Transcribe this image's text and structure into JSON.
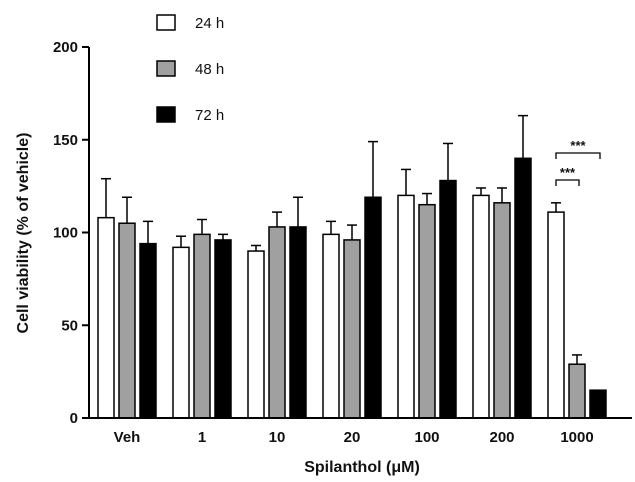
{
  "chart_data": {
    "type": "bar",
    "title": "",
    "xlabel": "Spilanthol (μM)",
    "ylabel": "Cell viability (% of vehicle)",
    "ylim": [
      0,
      200
    ],
    "yticks": [
      0,
      50,
      100,
      150,
      200
    ],
    "categories": [
      "Veh",
      "1",
      "10",
      "20",
      "100",
      "200",
      "1000"
    ],
    "series": [
      {
        "name": "24 h",
        "color": "#ffffff",
        "values": [
          108,
          92,
          90,
          99,
          120,
          120,
          111
        ],
        "errors": [
          21,
          6,
          3,
          7,
          14,
          4,
          5
        ]
      },
      {
        "name": "48 h",
        "color": "#a0a0a0",
        "values": [
          105,
          99,
          103,
          96,
          115,
          116,
          29
        ],
        "errors": [
          14,
          8,
          8,
          8,
          6,
          8,
          5
        ]
      },
      {
        "name": "72 h",
        "color": "#000000",
        "values": [
          94,
          96,
          103,
          119,
          128,
          140,
          15
        ],
        "errors": [
          12,
          3,
          16,
          30,
          20,
          23,
          0
        ]
      }
    ],
    "legend_position": "top-left",
    "significance": [
      {
        "category": "1000",
        "from_series": "24 h",
        "to_series": "48 h",
        "label": "***"
      },
      {
        "category": "1000",
        "from_series": "24 h",
        "to_series": "72 h",
        "label": "***"
      }
    ]
  }
}
